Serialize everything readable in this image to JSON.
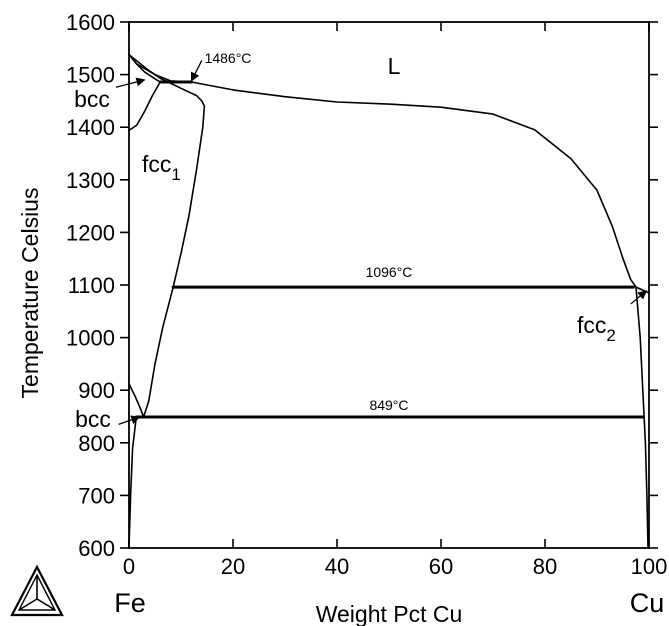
{
  "chart_data": {
    "type": "line",
    "xlabel": "Weight Pct Cu",
    "ylabel": "Temperature Celsius",
    "xlim": [
      0,
      100
    ],
    "ylim": [
      600,
      1600
    ],
    "x_ticks": [
      "0",
      "20",
      "40",
      "60",
      "80",
      "100"
    ],
    "y_ticks": [
      "600",
      "700",
      "800",
      "900",
      "1000",
      "1100",
      "1200",
      "1300",
      "1400",
      "1500",
      "1600"
    ],
    "element_left": "Fe",
    "element_right": "Cu",
    "phase_labels": {
      "liquid": "L",
      "bcc_high": "bcc",
      "fcc1_main": "fcc",
      "fcc1_sub": "1",
      "fcc2_main": "fcc",
      "fcc2_sub": "2",
      "bcc_low": "bcc"
    },
    "invariant_labels": {
      "peritectic_upper": "1486°C",
      "peritectic_cu": "1096°C",
      "eutectoid": "849°C"
    },
    "series": [
      {
        "values": [
          [
            0,
            1538
          ],
          [
            1.5,
            1520
          ],
          [
            5,
            1500
          ],
          [
            8,
            1488
          ],
          [
            12,
            1486
          ],
          [
            20,
            1471
          ],
          [
            30,
            1458
          ],
          [
            40,
            1448
          ],
          [
            50,
            1444
          ],
          [
            60,
            1438
          ],
          [
            70,
            1425
          ],
          [
            78,
            1395
          ],
          [
            85,
            1340
          ],
          [
            90,
            1280
          ],
          [
            93,
            1210
          ],
          [
            95,
            1150
          ],
          [
            96.5,
            1110
          ],
          [
            97.5,
            1096
          ],
          [
            100,
            1085
          ]
        ]
      },
      {
        "values": [
          [
            0,
            1538
          ],
          [
            3.5,
            1510
          ],
          [
            6,
            1493
          ],
          [
            7.5,
            1486
          ]
        ]
      },
      {
        "values": [
          [
            0,
            1538
          ],
          [
            1.5,
            1520
          ],
          [
            3,
            1505
          ],
          [
            5,
            1492
          ],
          [
            6,
            1486
          ]
        ]
      },
      {
        "values": [
          [
            0,
            1394
          ],
          [
            1.5,
            1404
          ],
          [
            3,
            1430
          ],
          [
            4.5,
            1460
          ],
          [
            6,
            1486
          ]
        ]
      },
      {
        "values": [
          [
            7.5,
            1486
          ],
          [
            10,
            1474
          ],
          [
            13,
            1460
          ],
          [
            14,
            1450
          ],
          [
            14.5,
            1440
          ],
          [
            14.2,
            1400
          ],
          [
            13,
            1320
          ],
          [
            11.5,
            1230
          ],
          [
            10,
            1160
          ],
          [
            8.5,
            1096
          ],
          [
            6.5,
            1020
          ],
          [
            5,
            950
          ],
          [
            3.8,
            880
          ],
          [
            2.8,
            849
          ]
        ]
      },
      {
        "values": [
          [
            0,
            912
          ],
          [
            1.2,
            888
          ],
          [
            2.2,
            865
          ],
          [
            2.8,
            849
          ]
        ]
      },
      {
        "values": [
          [
            0,
            600
          ],
          [
            0.3,
            700
          ],
          [
            0.7,
            790
          ],
          [
            1.4,
            849
          ]
        ]
      },
      {
        "values": [
          [
            97.5,
            1096
          ],
          [
            98.3,
            1000
          ],
          [
            98.8,
            900
          ],
          [
            99.3,
            800
          ],
          [
            99.6,
            700
          ],
          [
            99.8,
            600
          ]
        ]
      },
      {
        "values": [
          [
            6,
            1486
          ],
          [
            12,
            1486
          ]
        ]
      },
      {
        "values": [
          [
            8.5,
            1096
          ],
          [
            97,
            1096
          ]
        ]
      },
      {
        "values": [
          [
            1.4,
            849
          ],
          [
            98.8,
            849
          ]
        ]
      }
    ],
    "annotations": [
      {
        "text_key": "peritectic_upper",
        "x": 17,
        "y": 1536
      },
      {
        "text_key": "liquid",
        "x": 51,
        "y": 1500
      },
      {
        "text_key": "peritectic_cu",
        "x": 50,
        "y": 1115
      },
      {
        "text_key": "eutectoid",
        "x": 50,
        "y": 868
      }
    ],
    "arrows": [
      {
        "from": [
          14,
          1527
        ],
        "to": [
          12,
          1488
        ]
      },
      {
        "from": [
          -2.5,
          1476
        ],
        "to": [
          3,
          1490
        ]
      },
      {
        "from": [
          96.5,
          1064
        ],
        "to": [
          99.5,
          1089
        ]
      },
      {
        "from": [
          -2,
          835
        ],
        "to": [
          2,
          849
        ]
      }
    ],
    "grid": false,
    "logo": "thermo-calc-tetrahedron-logo"
  }
}
